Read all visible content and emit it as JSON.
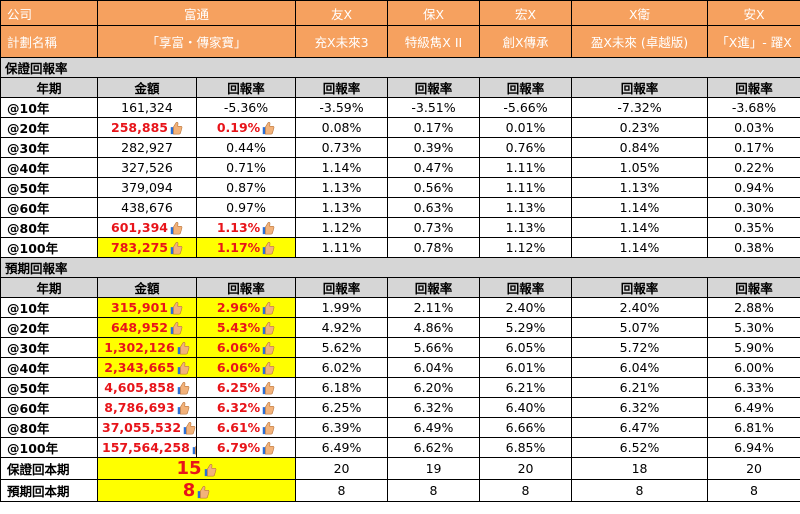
{
  "header": {
    "row1": [
      "公司",
      "富通",
      "友X",
      "保X",
      "宏X",
      "X衛",
      "安X"
    ],
    "row2": [
      "計劃名稱",
      "「享富・傳家寶」",
      "充X未來3",
      "特級雋X II",
      "創X傳承",
      "盈X未來 (卓越版)",
      "「X進」- 躍X"
    ]
  },
  "guaranteed": {
    "section_title": "保證回報率",
    "columns": [
      "年期",
      "金額",
      "回報率",
      "回報率",
      "回報率",
      "回報率",
      "回報率",
      "回報率"
    ],
    "rows": [
      {
        "label": "@10年",
        "amount": "161,324",
        "rate": "-5.36%",
        "others": [
          "-3.59%",
          "-3.51%",
          "-5.66%",
          "-7.32%",
          "-3.68%"
        ],
        "highlight": false,
        "bold_red": false,
        "thumb": false
      },
      {
        "label": "@20年",
        "amount": "258,885",
        "rate": "0.19%",
        "others": [
          "0.08%",
          "0.17%",
          "0.01%",
          "0.23%",
          "0.03%"
        ],
        "highlight": false,
        "bold_red": true,
        "thumb": true
      },
      {
        "label": "@30年",
        "amount": "282,927",
        "rate": "0.44%",
        "others": [
          "0.73%",
          "0.39%",
          "0.76%",
          "0.84%",
          "0.17%"
        ],
        "highlight": false,
        "bold_red": false,
        "thumb": false
      },
      {
        "label": "@40年",
        "amount": "327,526",
        "rate": "0.71%",
        "others": [
          "1.14%",
          "0.47%",
          "1.11%",
          "1.05%",
          "0.22%"
        ],
        "highlight": false,
        "bold_red": false,
        "thumb": false
      },
      {
        "label": "@50年",
        "amount": "379,094",
        "rate": "0.87%",
        "others": [
          "1.13%",
          "0.56%",
          "1.11%",
          "1.13%",
          "0.94%"
        ],
        "highlight": false,
        "bold_red": false,
        "thumb": false
      },
      {
        "label": "@60年",
        "amount": "438,676",
        "rate": "0.97%",
        "others": [
          "1.13%",
          "0.63%",
          "1.13%",
          "1.14%",
          "0.30%"
        ],
        "highlight": false,
        "bold_red": false,
        "thumb": false
      },
      {
        "label": "@80年",
        "amount": "601,394",
        "rate": "1.13%",
        "others": [
          "1.12%",
          "0.73%",
          "1.13%",
          "1.14%",
          "0.35%"
        ],
        "highlight": false,
        "bold_red": true,
        "thumb": true
      },
      {
        "label": "@100年",
        "amount": "783,275",
        "rate": "1.17%",
        "others": [
          "1.11%",
          "0.78%",
          "1.12%",
          "1.14%",
          "0.38%"
        ],
        "highlight": true,
        "bold_red": true,
        "thumb": true
      }
    ]
  },
  "projected": {
    "section_title": "預期回報率",
    "columns": [
      "年期",
      "金額",
      "回報率",
      "回報率",
      "回報率",
      "回報率",
      "回報率",
      "回報率"
    ],
    "rows": [
      {
        "label": "@10年",
        "amount": "315,901",
        "rate": "2.96%",
        "others": [
          "1.99%",
          "2.11%",
          "2.40%",
          "2.40%",
          "2.88%"
        ],
        "highlight": true,
        "bold_red": true,
        "thumb": true
      },
      {
        "label": "@20年",
        "amount": "648,952",
        "rate": "5.43%",
        "others": [
          "4.92%",
          "4.86%",
          "5.29%",
          "5.07%",
          "5.30%"
        ],
        "highlight": true,
        "bold_red": true,
        "thumb": true
      },
      {
        "label": "@30年",
        "amount": "1,302,126",
        "rate": "6.06%",
        "others": [
          "5.62%",
          "5.66%",
          "6.05%",
          "5.72%",
          "5.90%"
        ],
        "highlight": true,
        "bold_red": true,
        "thumb": true
      },
      {
        "label": "@40年",
        "amount": "2,343,665",
        "rate": "6.06%",
        "others": [
          "6.02%",
          "6.04%",
          "6.01%",
          "6.04%",
          "6.00%"
        ],
        "highlight": true,
        "bold_red": true,
        "thumb": true
      },
      {
        "label": "@50年",
        "amount": "4,605,858",
        "rate": "6.25%",
        "others": [
          "6.18%",
          "6.20%",
          "6.21%",
          "6.21%",
          "6.33%"
        ],
        "highlight": false,
        "bold_red": true,
        "thumb": true
      },
      {
        "label": "@60年",
        "amount": "8,786,693",
        "rate": "6.32%",
        "others": [
          "6.25%",
          "6.32%",
          "6.40%",
          "6.32%",
          "6.49%"
        ],
        "highlight": false,
        "bold_red": true,
        "thumb": true
      },
      {
        "label": "@80年",
        "amount": "37,055,532",
        "rate": "6.61%",
        "others": [
          "6.39%",
          "6.49%",
          "6.66%",
          "6.47%",
          "6.81%"
        ],
        "highlight": false,
        "bold_red": true,
        "thumb": true
      },
      {
        "label": "@100年",
        "amount": "157,564,258",
        "rate": "6.79%",
        "others": [
          "6.49%",
          "6.62%",
          "6.85%",
          "6.52%",
          "6.94%"
        ],
        "highlight": false,
        "bold_red": true,
        "thumb": true
      }
    ]
  },
  "payback": [
    {
      "label": "保證回本期",
      "main": "15",
      "others": [
        "20",
        "19",
        "20",
        "18",
        "20"
      ]
    },
    {
      "label": "預期回本期",
      "main": "8",
      "others": [
        "8",
        "8",
        "8",
        "8",
        "8"
      ]
    }
  ],
  "colors": {
    "header_orange": "#f6a15f",
    "section_gray": "#d6d6d6",
    "highlight_yellow": "#ffff00",
    "emphasis_red": "#e8141a"
  },
  "icons": {
    "thumb": "thumbs-up-icon"
  }
}
